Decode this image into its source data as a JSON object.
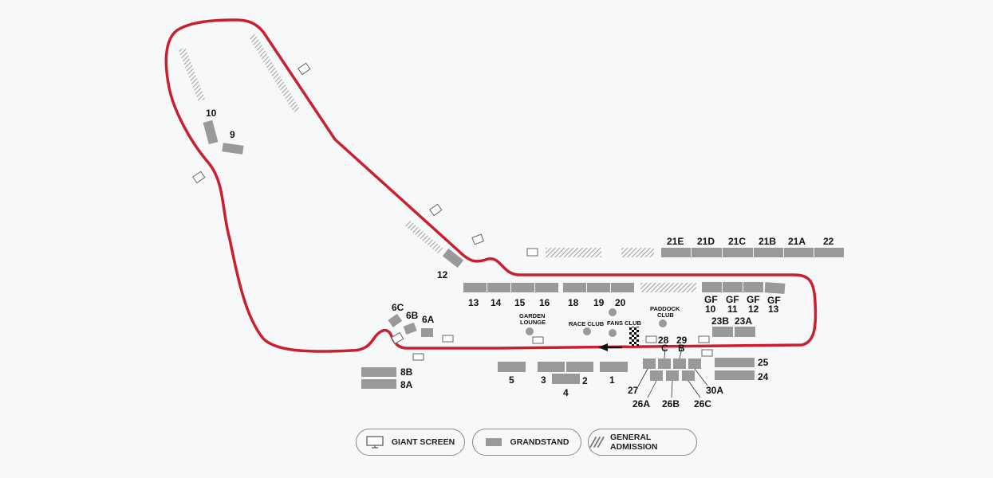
{
  "colors": {
    "track": "#cc1f2d",
    "grandstand": "#999999",
    "background": "#f7f8fa"
  },
  "labels": {
    "s10": "10",
    "s9": "9",
    "s12": "12",
    "s6c": "6C",
    "s6b": "6B",
    "s6a": "6A",
    "s8b": "8B",
    "s8a": "8A",
    "s13": "13",
    "s14": "14",
    "s15": "15",
    "s16": "16",
    "s18": "18",
    "s19": "19",
    "s20": "20",
    "gf10a": "GF",
    "gf10b": "10",
    "gf11a": "GF",
    "gf11b": "11",
    "gf12a": "GF",
    "gf12b": "12",
    "gf13a": "GF",
    "gf13b": "13",
    "s21e": "21E",
    "s21d": "21D",
    "s21c": "21C",
    "s21b": "21B",
    "s21a": "21A",
    "s22": "22",
    "s23b": "23B",
    "s23a": "23A",
    "s5": "5",
    "s3": "3",
    "s2": "2",
    "s4": "4",
    "s1": "1",
    "s28": "28",
    "s29": "29",
    "sC": "C",
    "sB": "B",
    "s25": "25",
    "s24": "24",
    "s27": "27",
    "s26a": "26A",
    "s26b": "26B",
    "s26c": "26C",
    "s30a": "30A",
    "garden1": "GARDEN",
    "garden2": "LOUNGE",
    "raceclub": "RACE CLUB",
    "fansclub": "FANS CLUB",
    "paddock1": "PADDOCK",
    "paddock2": "CLUB"
  },
  "legend": {
    "giant_screen": "GIANT SCREEN",
    "grandstand": "GRANDSTAND",
    "general_admission": "GENERAL ADMISSION"
  },
  "icons": {
    "screen": "giant-screen-icon",
    "grandstand": "grandstand-icon",
    "ga": "general-admission-icon",
    "flag": "checkered-flag-icon",
    "arrow": "direction-arrow-icon"
  }
}
